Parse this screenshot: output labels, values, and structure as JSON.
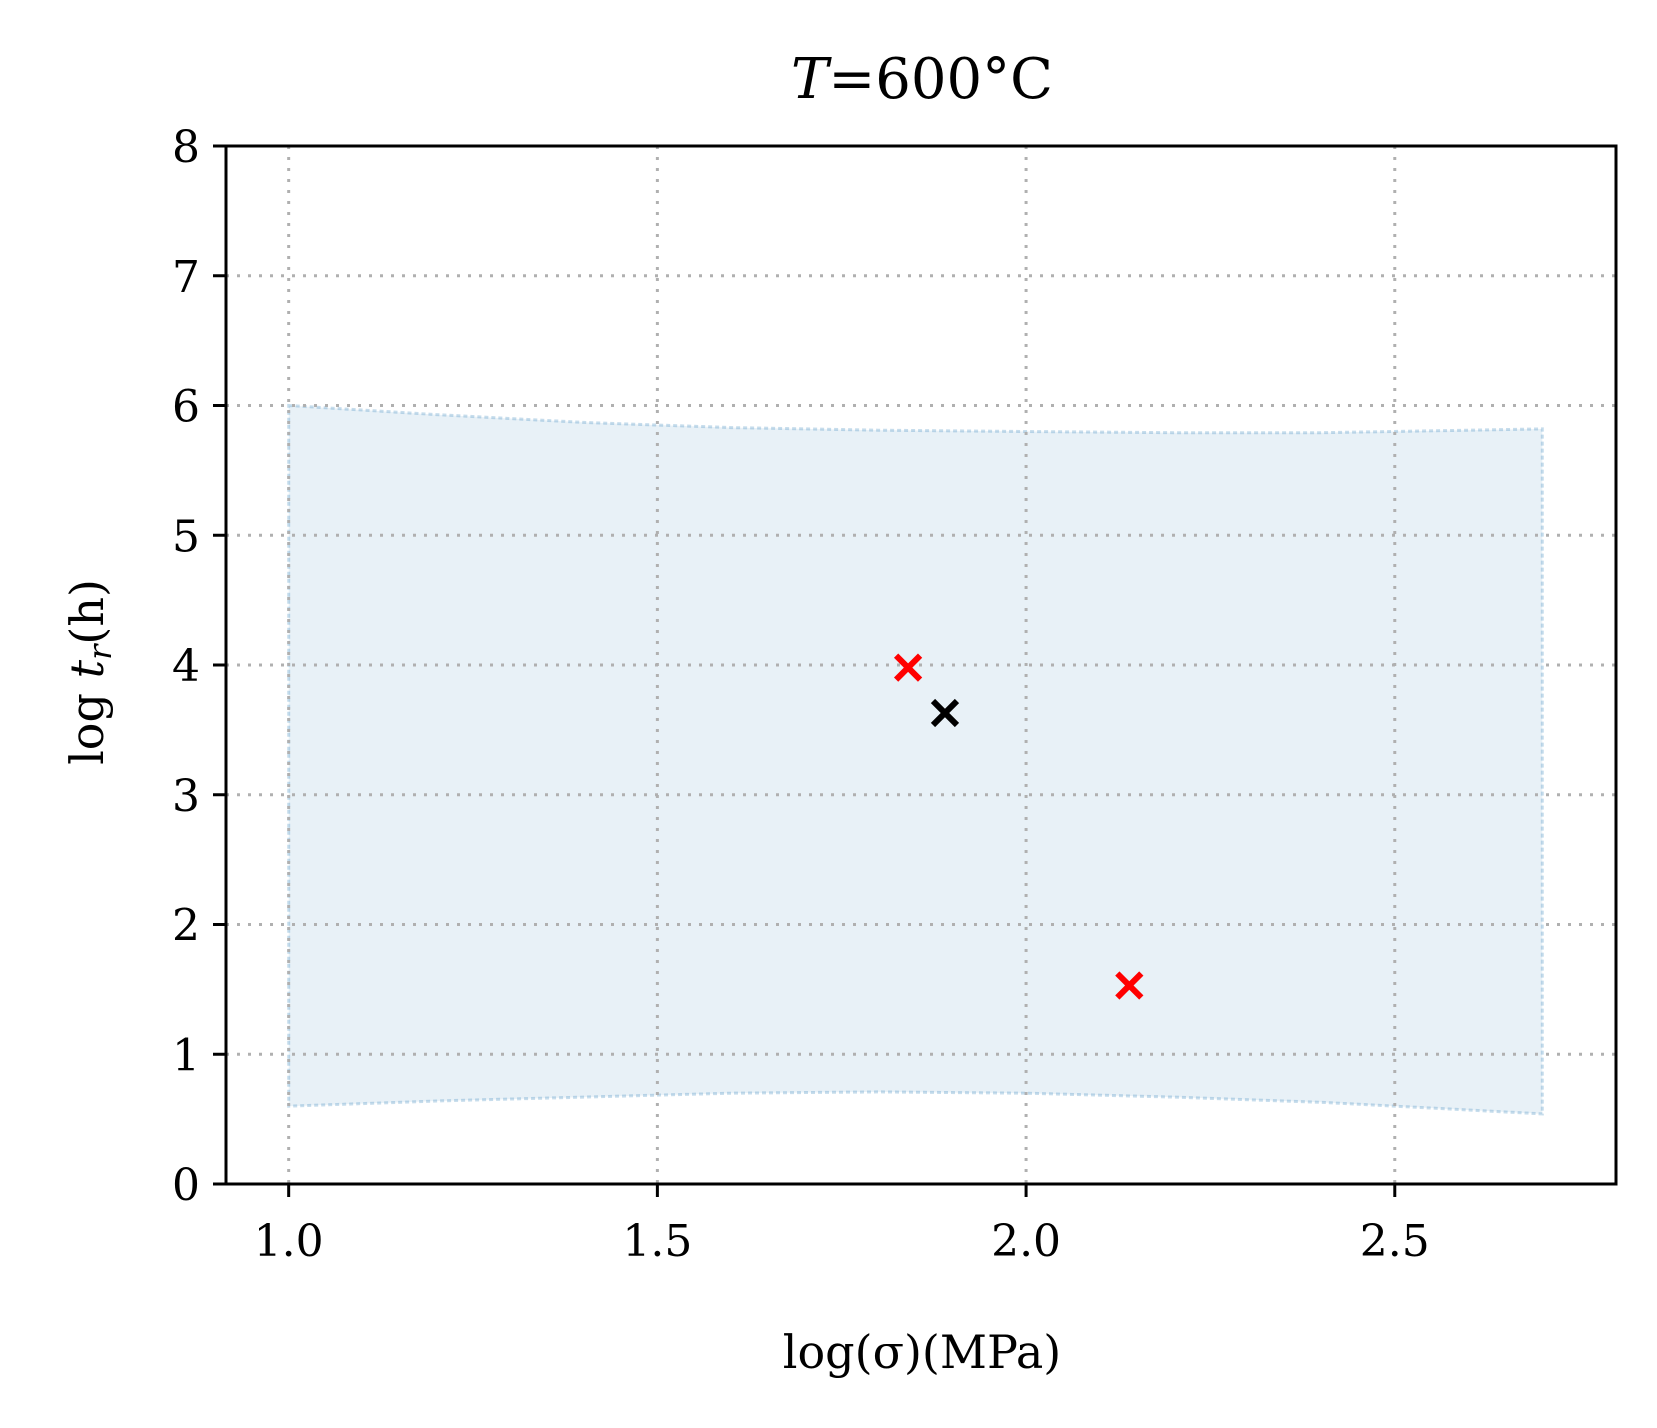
{
  "chart_data": {
    "type": "scatter",
    "title_pre": "T",
    "title_post": "=600°C",
    "xlabel": "log(σ)(MPa)",
    "ylabel_pre": "log ",
    "ylabel_var": "t",
    "ylabel_sub": "r",
    "ylabel_post": "(h)",
    "xlim": [
      0.915,
      2.8
    ],
    "ylim": [
      0,
      8
    ],
    "x_ticks": [
      {
        "value": 1.0,
        "label": "1.0"
      },
      {
        "value": 1.5,
        "label": "1.5"
      },
      {
        "value": 2.0,
        "label": "2.0"
      },
      {
        "value": 2.5,
        "label": "2.5"
      }
    ],
    "y_ticks": [
      {
        "value": 0,
        "label": "0"
      },
      {
        "value": 1,
        "label": "1"
      },
      {
        "value": 2,
        "label": "2"
      },
      {
        "value": 3,
        "label": "3"
      },
      {
        "value": 4,
        "label": "4"
      },
      {
        "value": 5,
        "label": "5"
      },
      {
        "value": 6,
        "label": "6"
      },
      {
        "value": 7,
        "label": "7"
      },
      {
        "value": 8,
        "label": "8"
      }
    ],
    "grid": true,
    "band": {
      "color": "#1f77b4",
      "x": [
        1.0,
        1.2,
        1.4,
        1.6,
        1.8,
        2.0,
        2.2,
        2.4,
        2.6,
        2.7
      ],
      "upper": [
        6.0,
        5.93,
        5.87,
        5.83,
        5.81,
        5.8,
        5.79,
        5.79,
        5.81,
        5.82
      ],
      "lower": [
        0.6,
        0.64,
        0.67,
        0.7,
        0.71,
        0.7,
        0.67,
        0.63,
        0.57,
        0.54
      ]
    },
    "series": [
      {
        "color": "#ff0000",
        "marker": "x",
        "points": [
          {
            "x": 1.84,
            "y": 3.98
          },
          {
            "x": 2.14,
            "y": 1.53
          }
        ]
      },
      {
        "color": "#000000",
        "marker": "x",
        "points": [
          {
            "x": 1.89,
            "y": 3.63
          }
        ]
      }
    ]
  }
}
